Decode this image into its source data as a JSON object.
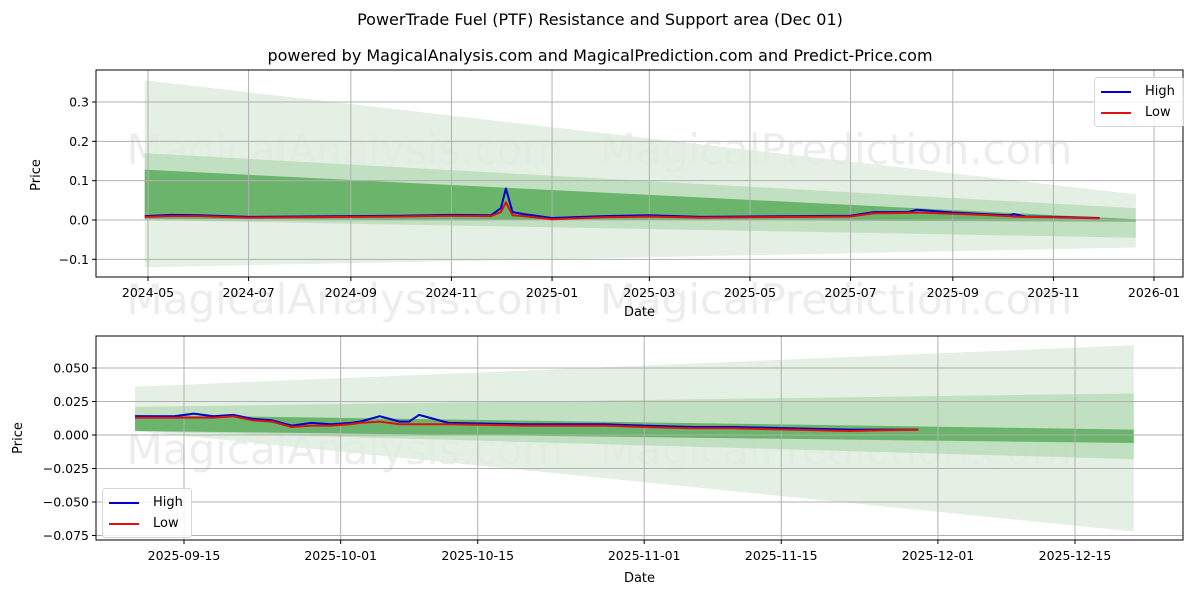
{
  "header": {
    "title": "PowerTrade Fuel (PTF) Resistance and Support area (Dec 01)",
    "subtitle": "powered by MagicalAnalysis.com and MagicalPrediction.com and Predict-Price.com"
  },
  "watermarks": [
    "MagicalAnalysis.com",
    "MagicalPrediction.com"
  ],
  "colors": {
    "high": "#0000cc",
    "low": "#dd1111",
    "band_dark": "#5cab5c",
    "band_mid": "#9fcf9f",
    "band_light": "#dcecdc",
    "grid": "#b0b0b0"
  },
  "legend": {
    "high_label": "High",
    "low_label": "Low"
  },
  "chart_data": [
    {
      "type": "line",
      "title": "Full history with resistance/support projection",
      "xlabel": "Date",
      "ylabel": "Price",
      "ylim": [
        -0.145,
        0.38
      ],
      "grid": true,
      "legend_position": "upper right",
      "x_ticks": [
        "2024-05",
        "2024-07",
        "2024-09",
        "2024-11",
        "2025-01",
        "2025-03",
        "2025-05",
        "2025-07",
        "2025-09",
        "2025-11",
        "2026-01"
      ],
      "y_ticks": [
        "-0.1",
        "0.0",
        "0.1",
        "0.2",
        "0.3"
      ],
      "series": [
        {
          "name": "High",
          "x": [
            "2024-04-29",
            "2024-05-15",
            "2024-06-01",
            "2024-07-01",
            "2024-08-01",
            "2024-09-01",
            "2024-10-01",
            "2024-11-01",
            "2024-11-25",
            "2024-12-01",
            "2024-12-04",
            "2024-12-08",
            "2024-12-15",
            "2025-01-01",
            "2025-02-01",
            "2025-03-01",
            "2025-04-01",
            "2025-05-01",
            "2025-06-01",
            "2025-07-01",
            "2025-07-15",
            "2025-08-05",
            "2025-08-10",
            "2025-09-01",
            "2025-09-20",
            "2025-10-05",
            "2025-10-08",
            "2025-10-15",
            "2025-11-01",
            "2025-11-29"
          ],
          "values": [
            0.01,
            0.013,
            0.012,
            0.008,
            0.009,
            0.01,
            0.011,
            0.013,
            0.012,
            0.03,
            0.08,
            0.02,
            0.015,
            0.005,
            0.01,
            0.012,
            0.008,
            0.009,
            0.01,
            0.011,
            0.02,
            0.02,
            0.026,
            0.019,
            0.015,
            0.012,
            0.015,
            0.009,
            0.008,
            0.005
          ]
        },
        {
          "name": "Low",
          "x": [
            "2024-04-29",
            "2024-05-15",
            "2024-06-01",
            "2024-07-01",
            "2024-08-01",
            "2024-09-01",
            "2024-10-01",
            "2024-11-01",
            "2024-11-25",
            "2024-12-01",
            "2024-12-04",
            "2024-12-08",
            "2024-12-15",
            "2025-01-01",
            "2025-02-01",
            "2025-03-01",
            "2025-04-01",
            "2025-05-01",
            "2025-06-01",
            "2025-07-01",
            "2025-07-15",
            "2025-08-05",
            "2025-08-10",
            "2025-09-01",
            "2025-09-20",
            "2025-10-05",
            "2025-10-08",
            "2025-10-15",
            "2025-11-01",
            "2025-11-29"
          ],
          "values": [
            0.008,
            0.01,
            0.01,
            0.006,
            0.007,
            0.008,
            0.009,
            0.011,
            0.01,
            0.02,
            0.045,
            0.012,
            0.01,
            0.002,
            0.007,
            0.009,
            0.006,
            0.007,
            0.008,
            0.009,
            0.017,
            0.018,
            0.019,
            0.016,
            0.013,
            0.01,
            0.009,
            0.008,
            0.007,
            0.004
          ]
        }
      ],
      "bands": [
        {
          "name": "outer-light",
          "x": [
            "2024-04-29",
            "2025-12-21"
          ],
          "upper": [
            0.355,
            0.065
          ],
          "lower": [
            -0.12,
            -0.07
          ]
        },
        {
          "name": "mid",
          "x": [
            "2024-04-29",
            "2025-12-21"
          ],
          "upper": [
            0.17,
            0.03
          ],
          "lower": [
            0.0,
            -0.045
          ]
        },
        {
          "name": "dark",
          "x": [
            "2024-04-29",
            "2025-12-21"
          ],
          "upper": [
            0.128,
            0.002
          ],
          "lower": [
            0.003,
            -0.004
          ]
        }
      ]
    },
    {
      "type": "line",
      "title": "Recent period zoom",
      "xlabel": "Date",
      "ylabel": "Price",
      "ylim": [
        -0.078,
        0.073
      ],
      "grid": true,
      "legend_position": "lower left",
      "x_ticks": [
        "2025-09-15",
        "2025-10-01",
        "2025-10-15",
        "2025-11-01",
        "2025-11-15",
        "2025-12-01",
        "2025-12-15"
      ],
      "y_ticks": [
        "-0.075",
        "-0.050",
        "-0.025",
        "0.000",
        "0.025",
        "0.050"
      ],
      "series": [
        {
          "name": "High",
          "x": [
            "2025-09-10",
            "2025-09-14",
            "2025-09-16",
            "2025-09-18",
            "2025-09-20",
            "2025-09-22",
            "2025-09-24",
            "2025-09-26",
            "2025-09-28",
            "2025-09-30",
            "2025-10-02",
            "2025-10-03",
            "2025-10-05",
            "2025-10-06",
            "2025-10-07",
            "2025-10-08",
            "2025-10-09",
            "2025-10-12",
            "2025-10-20",
            "2025-10-28",
            "2025-11-01",
            "2025-11-06",
            "2025-11-10",
            "2025-11-16",
            "2025-11-22",
            "2025-11-29"
          ],
          "values": [
            0.014,
            0.014,
            0.016,
            0.014,
            0.015,
            0.012,
            0.011,
            0.007,
            0.009,
            0.008,
            0.009,
            0.01,
            0.014,
            0.012,
            0.01,
            0.01,
            0.015,
            0.009,
            0.008,
            0.008,
            0.007,
            0.006,
            0.006,
            0.005,
            0.004,
            0.004
          ]
        },
        {
          "name": "Low",
          "x": [
            "2025-09-10",
            "2025-09-14",
            "2025-09-16",
            "2025-09-18",
            "2025-09-20",
            "2025-09-22",
            "2025-09-24",
            "2025-09-26",
            "2025-09-28",
            "2025-09-30",
            "2025-10-02",
            "2025-10-03",
            "2025-10-05",
            "2025-10-06",
            "2025-10-07",
            "2025-10-08",
            "2025-10-09",
            "2025-10-12",
            "2025-10-20",
            "2025-10-28",
            "2025-11-01",
            "2025-11-06",
            "2025-11-10",
            "2025-11-16",
            "2025-11-22",
            "2025-11-29"
          ],
          "values": [
            0.013,
            0.013,
            0.013,
            0.013,
            0.014,
            0.011,
            0.01,
            0.006,
            0.007,
            0.007,
            0.008,
            0.009,
            0.01,
            0.009,
            0.008,
            0.008,
            0.008,
            0.008,
            0.007,
            0.007,
            0.006,
            0.005,
            0.005,
            0.004,
            0.003,
            0.004
          ]
        }
      ],
      "bands": [
        {
          "name": "outer-light",
          "x": [
            "2025-09-10",
            "2025-12-21"
          ],
          "upper": [
            0.036,
            0.067
          ],
          "lower": [
            0.003,
            -0.072
          ]
        },
        {
          "name": "mid",
          "x": [
            "2025-09-10",
            "2025-12-21"
          ],
          "upper": [
            0.021,
            0.031
          ],
          "lower": [
            0.003,
            -0.018
          ]
        },
        {
          "name": "dark",
          "x": [
            "2025-09-10",
            "2025-12-21"
          ],
          "upper": [
            0.015,
            0.004
          ],
          "lower": [
            0.003,
            -0.006
          ]
        }
      ]
    }
  ]
}
